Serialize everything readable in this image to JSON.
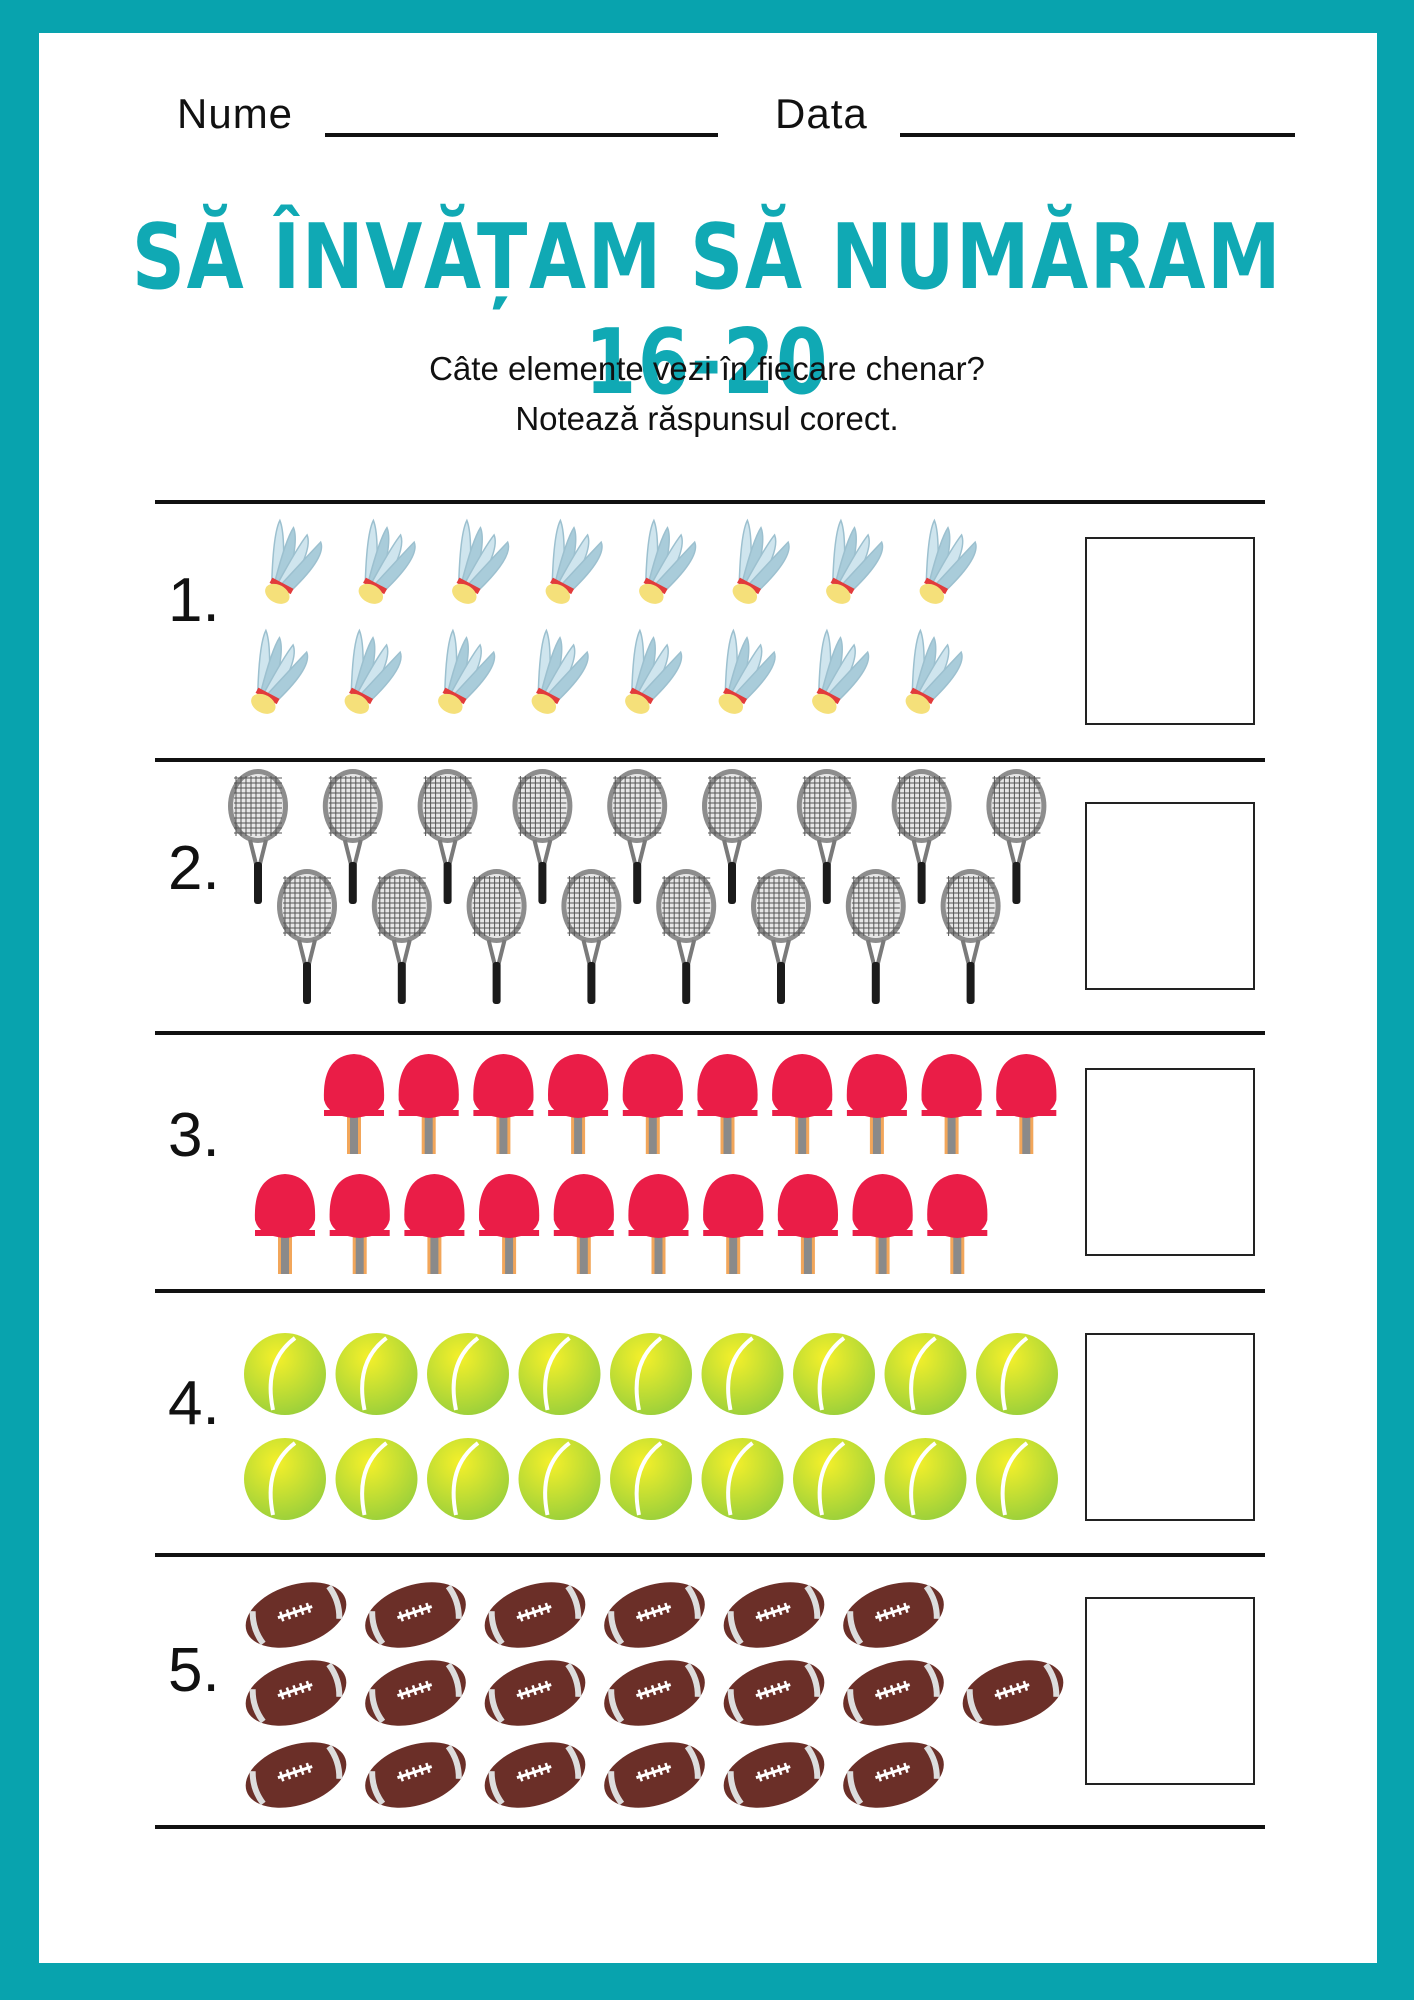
{
  "colors": {
    "frame": "#08a3ae",
    "title": "#10a9b4",
    "ink": "#111111"
  },
  "header": {
    "name_label": "Nume",
    "date_label": "Data"
  },
  "title": "SĂ ÎNVĂȚAM SĂ NUMĂRAM 16-20",
  "instructions": {
    "line1": "Câte elemente vezi în fiecare chenar?",
    "line2": "Notează răspunsul corect."
  },
  "exercises": [
    {
      "number": "1.",
      "item": "badminton-shuttlecock-icon",
      "count": 16,
      "answer": ""
    },
    {
      "number": "2.",
      "item": "tennis-racket-icon",
      "count": 17,
      "answer": ""
    },
    {
      "number": "3.",
      "item": "ping-pong-paddle-icon",
      "count": 20,
      "answer": ""
    },
    {
      "number": "4.",
      "item": "tennis-ball-icon",
      "count": 18,
      "answer": ""
    },
    {
      "number": "5.",
      "item": "american-football-icon",
      "count": 19,
      "answer": ""
    }
  ]
}
